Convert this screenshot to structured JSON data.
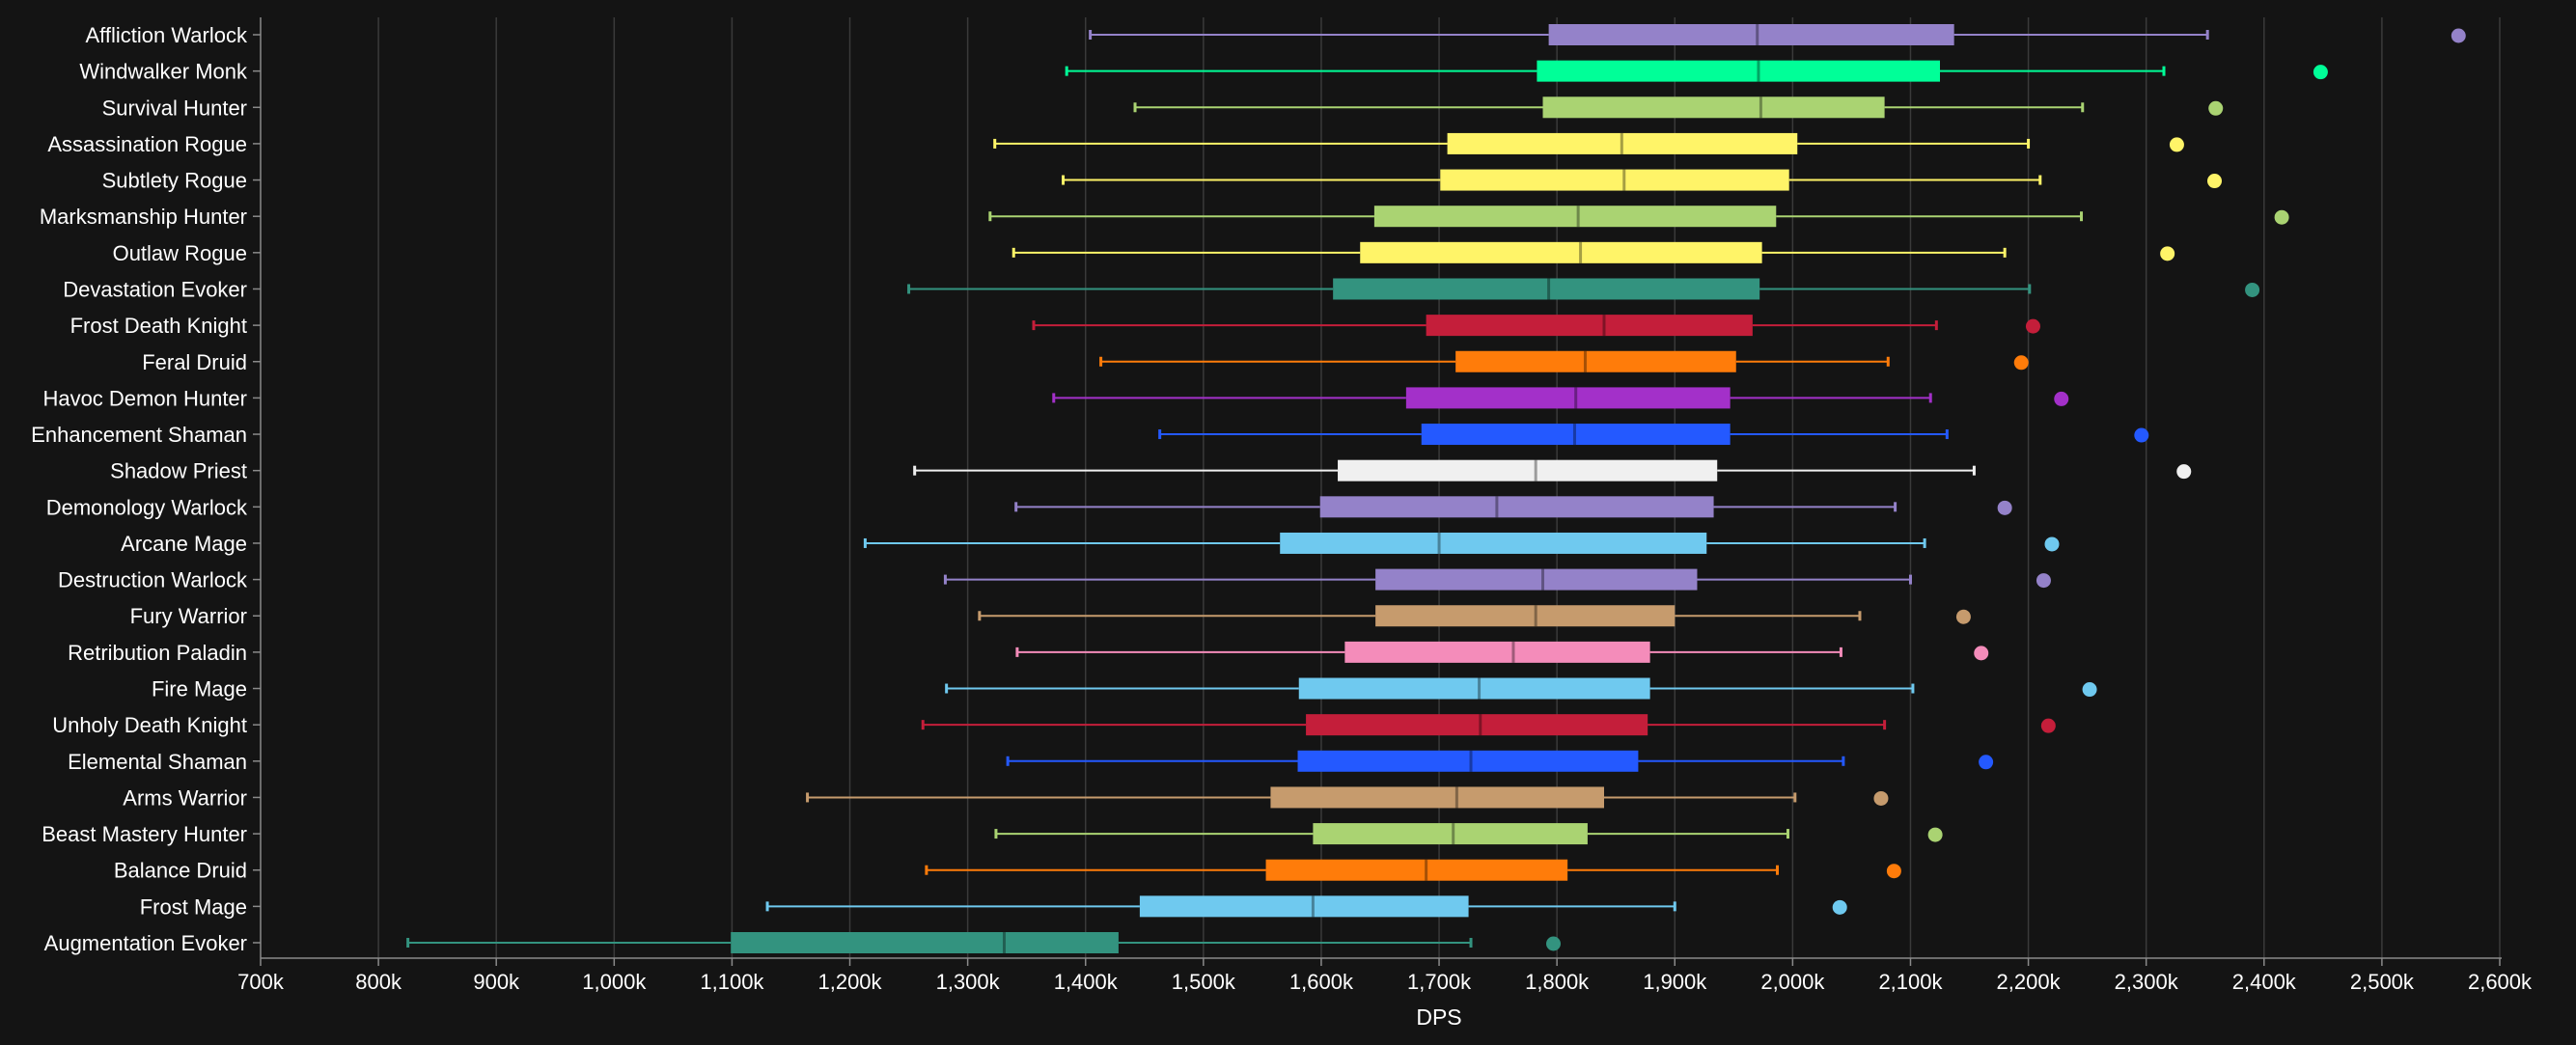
{
  "colors": {
    "background": "#141414",
    "grid": "#3a3a3a",
    "axis": "#8a8a8a",
    "text": "#ffffff"
  },
  "chart_data": {
    "type": "boxplot",
    "title": "",
    "xlabel": "DPS",
    "ylabel": "",
    "xlim": [
      700000,
      2600000
    ],
    "x_ticks": [
      700000,
      800000,
      900000,
      1000000,
      1100000,
      1200000,
      1300000,
      1400000,
      1500000,
      1600000,
      1700000,
      1800000,
      1900000,
      2000000,
      2100000,
      2200000,
      2300000,
      2400000,
      2500000,
      2600000
    ],
    "x_tick_labels": [
      "700k",
      "800k",
      "900k",
      "1,000k",
      "1,100k",
      "1,200k",
      "1,300k",
      "1,400k",
      "1,500k",
      "1,600k",
      "1,700k",
      "1,800k",
      "1,900k",
      "2,000k",
      "2,100k",
      "2,200k",
      "2,300k",
      "2,400k",
      "2,500k",
      "2,600k"
    ],
    "grid": true,
    "legend": "none",
    "series": [
      {
        "name": "Affliction Warlock",
        "color": "#9482c9",
        "min": 1404000,
        "q1": 1793000,
        "median": 1970000,
        "q3": 2137000,
        "max": 2352000,
        "outlier": 2565000
      },
      {
        "name": "Windwalker Monk",
        "color": "#00ff98",
        "min": 1384000,
        "q1": 1783000,
        "median": 1971000,
        "q3": 2125000,
        "max": 2315000,
        "outlier": 2448000
      },
      {
        "name": "Survival Hunter",
        "color": "#aad372",
        "min": 1442000,
        "q1": 1788000,
        "median": 1973000,
        "q3": 2078000,
        "max": 2246000,
        "outlier": 2359000
      },
      {
        "name": "Assassination Rogue",
        "color": "#fff468",
        "min": 1323000,
        "q1": 1707000,
        "median": 1855000,
        "q3": 2004000,
        "max": 2200000,
        "outlier": 2326000
      },
      {
        "name": "Subtlety Rogue",
        "color": "#fff468",
        "min": 1381000,
        "q1": 1701000,
        "median": 1857000,
        "q3": 1997000,
        "max": 2210000,
        "outlier": 2358000
      },
      {
        "name": "Marksmanship Hunter",
        "color": "#aad372",
        "min": 1319000,
        "q1": 1645000,
        "median": 1818000,
        "q3": 1986000,
        "max": 2245000,
        "outlier": 2415000
      },
      {
        "name": "Outlaw Rogue",
        "color": "#fff468",
        "min": 1339000,
        "q1": 1633000,
        "median": 1820000,
        "q3": 1974000,
        "max": 2180000,
        "outlier": 2318000
      },
      {
        "name": "Devastation Evoker",
        "color": "#33937f",
        "min": 1250000,
        "q1": 1610000,
        "median": 1793000,
        "q3": 1972000,
        "max": 2201000,
        "outlier": 2390000
      },
      {
        "name": "Frost Death Knight",
        "color": "#c41e3a",
        "min": 1356000,
        "q1": 1689000,
        "median": 1840000,
        "q3": 1966000,
        "max": 2122000,
        "outlier": 2204000
      },
      {
        "name": "Feral Druid",
        "color": "#ff7c0a",
        "min": 1413000,
        "q1": 1714000,
        "median": 1824000,
        "q3": 1952000,
        "max": 2081000,
        "outlier": 2194000
      },
      {
        "name": "Havoc Demon Hunter",
        "color": "#a330c9",
        "min": 1373000,
        "q1": 1672000,
        "median": 1816000,
        "q3": 1947000,
        "max": 2117000,
        "outlier": 2228000
      },
      {
        "name": "Enhancement Shaman",
        "color": "#2459ff",
        "min": 1463000,
        "q1": 1685000,
        "median": 1815000,
        "q3": 1947000,
        "max": 2131000,
        "outlier": 2296000
      },
      {
        "name": "Shadow Priest",
        "color": "#f0f0f0",
        "min": 1255000,
        "q1": 1614000,
        "median": 1782000,
        "q3": 1936000,
        "max": 2154000,
        "outlier": 2332000
      },
      {
        "name": "Demonology Warlock",
        "color": "#9482c9",
        "min": 1341000,
        "q1": 1599000,
        "median": 1749000,
        "q3": 1933000,
        "max": 2087000,
        "outlier": 2180000
      },
      {
        "name": "Arcane Mage",
        "color": "#6fc9ef",
        "min": 1213000,
        "q1": 1565000,
        "median": 1700000,
        "q3": 1927000,
        "max": 2112000,
        "outlier": 2220000
      },
      {
        "name": "Destruction Warlock",
        "color": "#9482c9",
        "min": 1281000,
        "q1": 1646000,
        "median": 1788000,
        "q3": 1919000,
        "max": 2100000,
        "outlier": 2213000
      },
      {
        "name": "Fury Warrior",
        "color": "#c69b6d",
        "min": 1310000,
        "q1": 1646000,
        "median": 1782000,
        "q3": 1900000,
        "max": 2057000,
        "outlier": 2145000
      },
      {
        "name": "Retribution Paladin",
        "color": "#f48cba",
        "min": 1342000,
        "q1": 1620000,
        "median": 1763000,
        "q3": 1879000,
        "max": 2041000,
        "outlier": 2160000
      },
      {
        "name": "Fire Mage",
        "color": "#6fc9ef",
        "min": 1282000,
        "q1": 1581000,
        "median": 1734000,
        "q3": 1879000,
        "max": 2102000,
        "outlier": 2252000
      },
      {
        "name": "Unholy Death Knight",
        "color": "#c41e3a",
        "min": 1262000,
        "q1": 1587000,
        "median": 1735000,
        "q3": 1877000,
        "max": 2078000,
        "outlier": 2217000
      },
      {
        "name": "Elemental Shaman",
        "color": "#2459ff",
        "min": 1334000,
        "q1": 1580000,
        "median": 1727000,
        "q3": 1869000,
        "max": 2043000,
        "outlier": 2164000
      },
      {
        "name": "Arms Warrior",
        "color": "#c69b6d",
        "min": 1164000,
        "q1": 1557000,
        "median": 1715000,
        "q3": 1840000,
        "max": 2002000,
        "outlier": 2075000
      },
      {
        "name": "Beast Mastery Hunter",
        "color": "#aad372",
        "min": 1324000,
        "q1": 1593000,
        "median": 1712000,
        "q3": 1826000,
        "max": 1996000,
        "outlier": 2121000
      },
      {
        "name": "Balance Druid",
        "color": "#ff7c0a",
        "min": 1265000,
        "q1": 1553000,
        "median": 1689000,
        "q3": 1809000,
        "max": 1987000,
        "outlier": 2086000
      },
      {
        "name": "Frost Mage",
        "color": "#6fc9ef",
        "min": 1130000,
        "q1": 1446000,
        "median": 1593000,
        "q3": 1725000,
        "max": 1900000,
        "outlier": 2040000
      },
      {
        "name": "Augmentation Evoker",
        "color": "#33937f",
        "min": 825000,
        "q1": 1099000,
        "median": 1331000,
        "q3": 1428000,
        "max": 1727000,
        "outlier": 1797000
      }
    ]
  }
}
